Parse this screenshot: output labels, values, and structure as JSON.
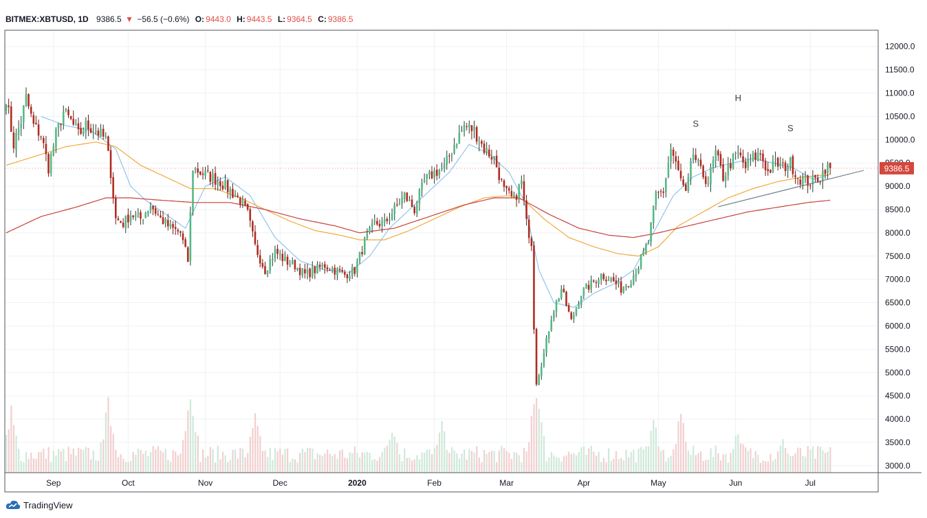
{
  "header": {
    "symbol": "BITMEX:XBTUSD, 1D",
    "last": "9386.5",
    "change": "−56.5 (−0.6%)",
    "o_label": "O:",
    "o_value": "9443.0",
    "h_label": "H:",
    "h_value": "9443.5",
    "l_label": "L:",
    "l_value": "9364.5",
    "c_label": "C:",
    "c_value": "9386.5"
  },
  "branding": {
    "name": "TradingView",
    "icon": "tradingview-cloud-icon"
  },
  "colors": {
    "up": "#53b987",
    "down": "#c0392b",
    "downBody": "#b22b1f",
    "ma_short": "#8fc5ec",
    "ma_mid": "#f2a93b",
    "ma_long": "#c7403b",
    "trendline": "#6b7a8a",
    "price_tag": "#d3473d",
    "grid": "#eef1f4"
  },
  "chart_data": {
    "type": "candlestick",
    "symbol": "BITMEX:XBTUSD",
    "interval": "1D",
    "ylim": [
      2850,
      12350
    ],
    "y_ticks": [
      "12000.0",
      "11500.0",
      "11000.0",
      "10500.0",
      "10000.0",
      "9500.0",
      "9000.0",
      "8500.0",
      "8000.0",
      "7500.0",
      "7000.0",
      "6500.0",
      "6000.0",
      "5500.0",
      "5000.0",
      "4500.0",
      "4000.0",
      "3500.0",
      "3000.0"
    ],
    "x_ticks": [
      "Sep",
      "Oct",
      "Nov",
      "Dec",
      "2020",
      "Feb",
      "Mar",
      "Apr",
      "May",
      "Jun",
      "Jul"
    ],
    "x_tick_days": [
      19,
      49,
      80,
      110,
      141,
      172,
      201,
      232,
      262,
      293,
      323
    ],
    "last_price": "9386.5",
    "annotations": [
      {
        "text": "S",
        "day": 277,
        "price": 10280
      },
      {
        "text": "H",
        "day": 294,
        "price": 10830
      },
      {
        "text": "S",
        "day": 315,
        "price": 10180
      }
    ],
    "neckline": {
      "from": {
        "day": 286,
        "price": 8560
      },
      "to": {
        "day": 343,
        "price": 9380
      }
    },
    "closes_keyframes": [
      [
        0,
        10900
      ],
      [
        3,
        9900
      ],
      [
        6,
        10400
      ],
      [
        8,
        10900
      ],
      [
        11,
        10300
      ],
      [
        14,
        10100
      ],
      [
        17,
        9400
      ],
      [
        20,
        10100
      ],
      [
        23,
        10600
      ],
      [
        26,
        10400
      ],
      [
        29,
        10100
      ],
      [
        32,
        10300
      ],
      [
        36,
        10200
      ],
      [
        40,
        10000
      ],
      [
        42,
        9300
      ],
      [
        44,
        8300
      ],
      [
        47,
        8200
      ],
      [
        50,
        8400
      ],
      [
        54,
        8300
      ],
      [
        58,
        8600
      ],
      [
        62,
        8300
      ],
      [
        66,
        8100
      ],
      [
        70,
        8000
      ],
      [
        73,
        7400
      ],
      [
        75,
        9400
      ],
      [
        78,
        9300
      ],
      [
        82,
        9200
      ],
      [
        86,
        9100
      ],
      [
        90,
        8900
      ],
      [
        94,
        8700
      ],
      [
        97,
        8400
      ],
      [
        100,
        7700
      ],
      [
        104,
        7200
      ],
      [
        108,
        7600
      ],
      [
        112,
        7400
      ],
      [
        116,
        7300
      ],
      [
        120,
        7100
      ],
      [
        124,
        7200
      ],
      [
        128,
        7300
      ],
      [
        132,
        7200
      ],
      [
        136,
        7100
      ],
      [
        140,
        7200
      ],
      [
        144,
        7800
      ],
      [
        148,
        8200
      ],
      [
        152,
        8200
      ],
      [
        156,
        8500
      ],
      [
        160,
        8800
      ],
      [
        164,
        8500
      ],
      [
        168,
        9100
      ],
      [
        172,
        9300
      ],
      [
        176,
        9400
      ],
      [
        180,
        9900
      ],
      [
        184,
        10300
      ],
      [
        188,
        10200
      ],
      [
        192,
        9800
      ],
      [
        196,
        9600
      ],
      [
        200,
        8900
      ],
      [
        204,
        8700
      ],
      [
        207,
        9100
      ],
      [
        209,
        8200
      ],
      [
        211,
        7800
      ],
      [
        212,
        6000
      ],
      [
        213,
        4800
      ],
      [
        216,
        5400
      ],
      [
        219,
        6200
      ],
      [
        223,
        6800
      ],
      [
        227,
        6100
      ],
      [
        231,
        6700
      ],
      [
        235,
        6900
      ],
      [
        239,
        7100
      ],
      [
        243,
        7000
      ],
      [
        247,
        6800
      ],
      [
        251,
        7000
      ],
      [
        254,
        7300
      ],
      [
        258,
        7800
      ],
      [
        261,
        8800
      ],
      [
        264,
        8900
      ],
      [
        267,
        9800
      ],
      [
        270,
        9300
      ],
      [
        273,
        8800
      ],
      [
        276,
        9700
      ],
      [
        279,
        9300
      ],
      [
        282,
        9100
      ],
      [
        285,
        9700
      ],
      [
        288,
        9200
      ],
      [
        291,
        9500
      ],
      [
        294,
        9700
      ],
      [
        297,
        9400
      ],
      [
        300,
        9600
      ],
      [
        303,
        9700
      ],
      [
        306,
        9300
      ],
      [
        309,
        9500
      ],
      [
        312,
        9400
      ],
      [
        315,
        9500
      ],
      [
        318,
        9200
      ],
      [
        321,
        9100
      ],
      [
        324,
        9100
      ],
      [
        327,
        9200
      ],
      [
        329,
        9400
      ],
      [
        331,
        9386.5
      ]
    ],
    "ma_short_keyframes": [
      [
        14,
        10500
      ],
      [
        24,
        10300
      ],
      [
        34,
        10200
      ],
      [
        44,
        9800
      ],
      [
        50,
        9000
      ],
      [
        56,
        8700
      ],
      [
        64,
        8400
      ],
      [
        72,
        8100
      ],
      [
        80,
        9000
      ],
      [
        88,
        9200
      ],
      [
        98,
        8800
      ],
      [
        108,
        7900
      ],
      [
        118,
        7400
      ],
      [
        128,
        7200
      ],
      [
        138,
        7150
      ],
      [
        146,
        7500
      ],
      [
        154,
        8100
      ],
      [
        162,
        8500
      ],
      [
        170,
        8900
      ],
      [
        178,
        9300
      ],
      [
        186,
        9900
      ],
      [
        194,
        9700
      ],
      [
        202,
        9300
      ],
      [
        208,
        8700
      ],
      [
        214,
        7200
      ],
      [
        220,
        6500
      ],
      [
        228,
        6400
      ],
      [
        236,
        6700
      ],
      [
        244,
        6900
      ],
      [
        252,
        7200
      ],
      [
        260,
        8000
      ],
      [
        268,
        8800
      ],
      [
        276,
        9200
      ],
      [
        284,
        9400
      ],
      [
        292,
        9500
      ],
      [
        300,
        9600
      ],
      [
        308,
        9500
      ],
      [
        316,
        9400
      ],
      [
        324,
        9150
      ],
      [
        331,
        9250
      ]
    ],
    "ma_mid_keyframes": [
      [
        0,
        9450
      ],
      [
        12,
        9650
      ],
      [
        24,
        9850
      ],
      [
        36,
        9950
      ],
      [
        44,
        9850
      ],
      [
        54,
        9450
      ],
      [
        64,
        9200
      ],
      [
        74,
        8950
      ],
      [
        84,
        8950
      ],
      [
        94,
        8750
      ],
      [
        104,
        8500
      ],
      [
        114,
        8250
      ],
      [
        124,
        8050
      ],
      [
        134,
        7950
      ],
      [
        142,
        7850
      ],
      [
        152,
        7850
      ],
      [
        162,
        8050
      ],
      [
        172,
        8300
      ],
      [
        182,
        8550
      ],
      [
        192,
        8750
      ],
      [
        202,
        8800
      ],
      [
        208,
        8700
      ],
      [
        216,
        8300
      ],
      [
        226,
        7900
      ],
      [
        236,
        7700
      ],
      [
        246,
        7550
      ],
      [
        254,
        7500
      ],
      [
        262,
        7700
      ],
      [
        270,
        8150
      ],
      [
        280,
        8450
      ],
      [
        290,
        8750
      ],
      [
        300,
        8950
      ],
      [
        310,
        9100
      ],
      [
        320,
        9200
      ],
      [
        331,
        9250
      ]
    ],
    "ma_long_keyframes": [
      [
        0,
        8000
      ],
      [
        14,
        8350
      ],
      [
        28,
        8550
      ],
      [
        40,
        8750
      ],
      [
        50,
        8750
      ],
      [
        62,
        8700
      ],
      [
        76,
        8650
      ],
      [
        90,
        8650
      ],
      [
        104,
        8500
      ],
      [
        118,
        8300
      ],
      [
        132,
        8150
      ],
      [
        142,
        8000
      ],
      [
        156,
        8100
      ],
      [
        170,
        8350
      ],
      [
        184,
        8600
      ],
      [
        196,
        8750
      ],
      [
        206,
        8750
      ],
      [
        218,
        8400
      ],
      [
        230,
        8100
      ],
      [
        242,
        7950
      ],
      [
        252,
        7900
      ],
      [
        262,
        8000
      ],
      [
        274,
        8150
      ],
      [
        286,
        8300
      ],
      [
        298,
        8450
      ],
      [
        310,
        8550
      ],
      [
        322,
        8650
      ],
      [
        331,
        8700
      ]
    ],
    "volume_peaks": [
      [
        2,
        0.55
      ],
      [
        41,
        0.62
      ],
      [
        74,
        0.78
      ],
      [
        100,
        0.5
      ],
      [
        155,
        0.45
      ],
      [
        175,
        0.42
      ],
      [
        213,
        0.78
      ],
      [
        260,
        0.5
      ],
      [
        271,
        0.52
      ],
      [
        294,
        0.42
      ],
      [
        312,
        0.3
      ]
    ]
  }
}
